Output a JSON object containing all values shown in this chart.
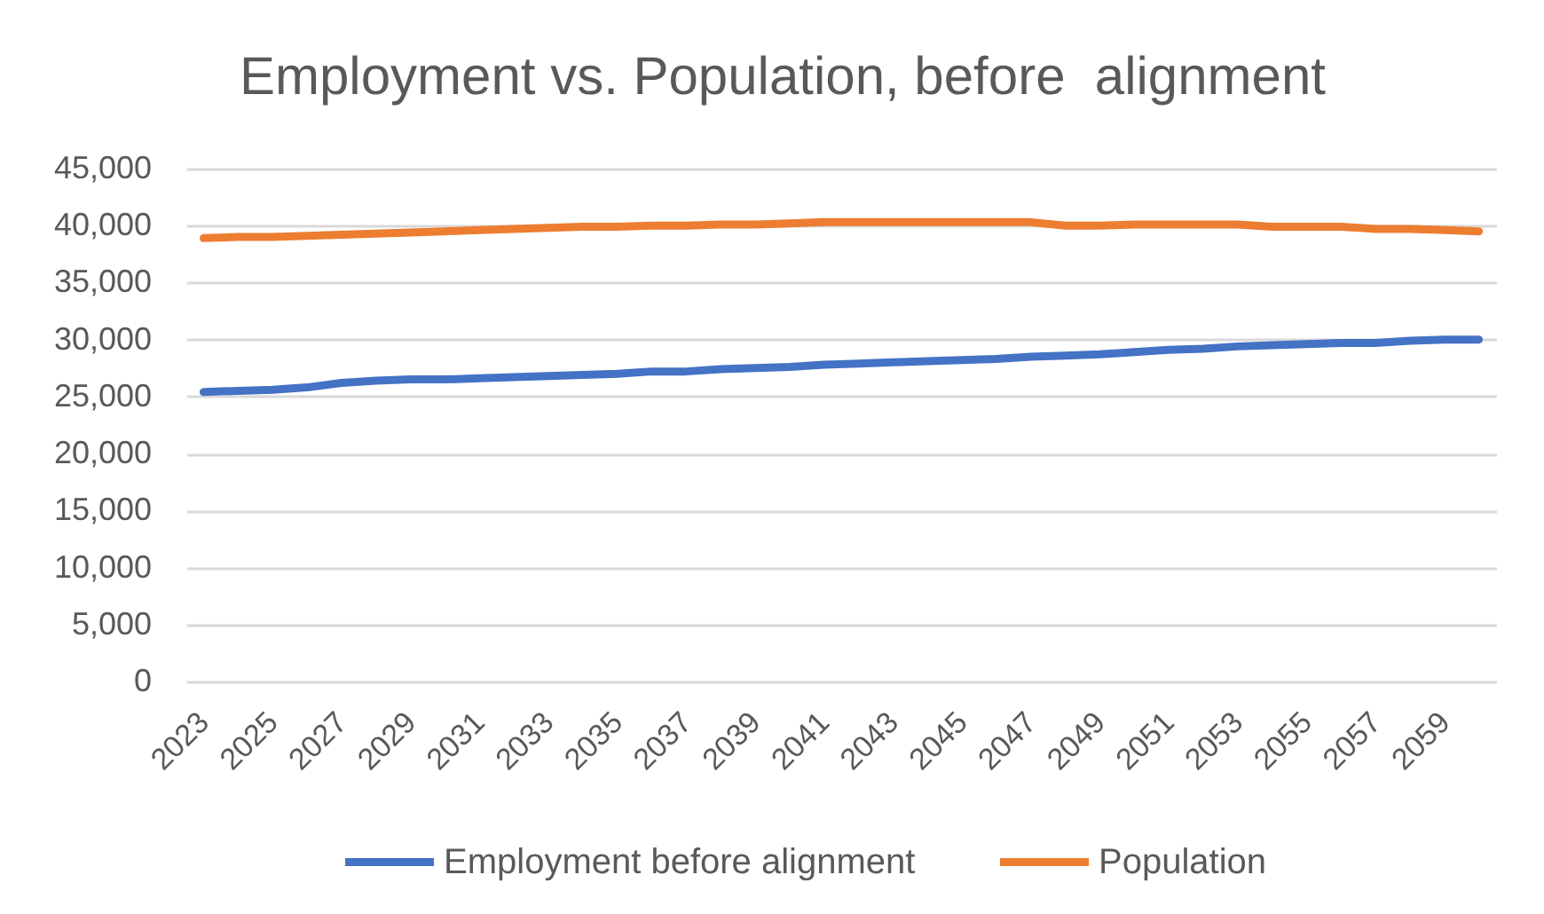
{
  "chart_data": {
    "type": "line",
    "title": "Employment vs. Population, before  alignment",
    "categories": [
      "2023",
      null,
      "2025",
      null,
      "2027",
      null,
      "2029",
      null,
      "2031",
      null,
      "2033",
      null,
      "2035",
      null,
      "2037",
      null,
      "2039",
      null,
      "2041",
      null,
      "2043",
      null,
      "2045",
      null,
      "2047",
      null,
      "2049",
      null,
      "2051",
      null,
      "2053",
      null,
      "2055",
      null,
      "2057",
      null,
      "2059",
      null
    ],
    "series": [
      {
        "name": "Employment before alignment",
        "color": "#4472c4",
        "values": [
          25400,
          25500,
          25600,
          25800,
          26200,
          26400,
          26500,
          26500,
          26600,
          26700,
          26800,
          26900,
          27000,
          27200,
          27200,
          27400,
          27500,
          27600,
          27800,
          27900,
          28000,
          28100,
          28200,
          28300,
          28500,
          28600,
          28700,
          28900,
          29100,
          29200,
          29400,
          29500,
          29600,
          29700,
          29700,
          29900,
          30000,
          30000
        ]
      },
      {
        "name": "Population",
        "color": "#ed7d31",
        "values": [
          38900,
          39000,
          39000,
          39100,
          39200,
          39300,
          39400,
          39500,
          39600,
          39700,
          39800,
          39900,
          39900,
          40000,
          40000,
          40100,
          40100,
          40200,
          40300,
          40300,
          40300,
          40300,
          40300,
          40300,
          40300,
          40000,
          40000,
          40100,
          40100,
          40100,
          40100,
          39900,
          39900,
          39900,
          39700,
          39700,
          39600,
          39500
        ]
      }
    ],
    "ylim": [
      0,
      45000
    ],
    "yticks": [
      0,
      {
        "value": 5000,
        "label": "5,000"
      },
      {
        "value": 10000,
        "label": "10,000"
      },
      {
        "value": 15000,
        "label": "15,000"
      },
      {
        "value": 20000,
        "label": "20,000"
      },
      {
        "value": 25000,
        "label": "25,000"
      },
      {
        "value": 30000,
        "label": "30,000"
      },
      {
        "value": 35000,
        "label": "35,000"
      },
      {
        "value": 40000,
        "label": "40,000"
      },
      {
        "value": 45000,
        "label": "45,000"
      }
    ],
    "grid": "y",
    "legend": "bottom"
  }
}
